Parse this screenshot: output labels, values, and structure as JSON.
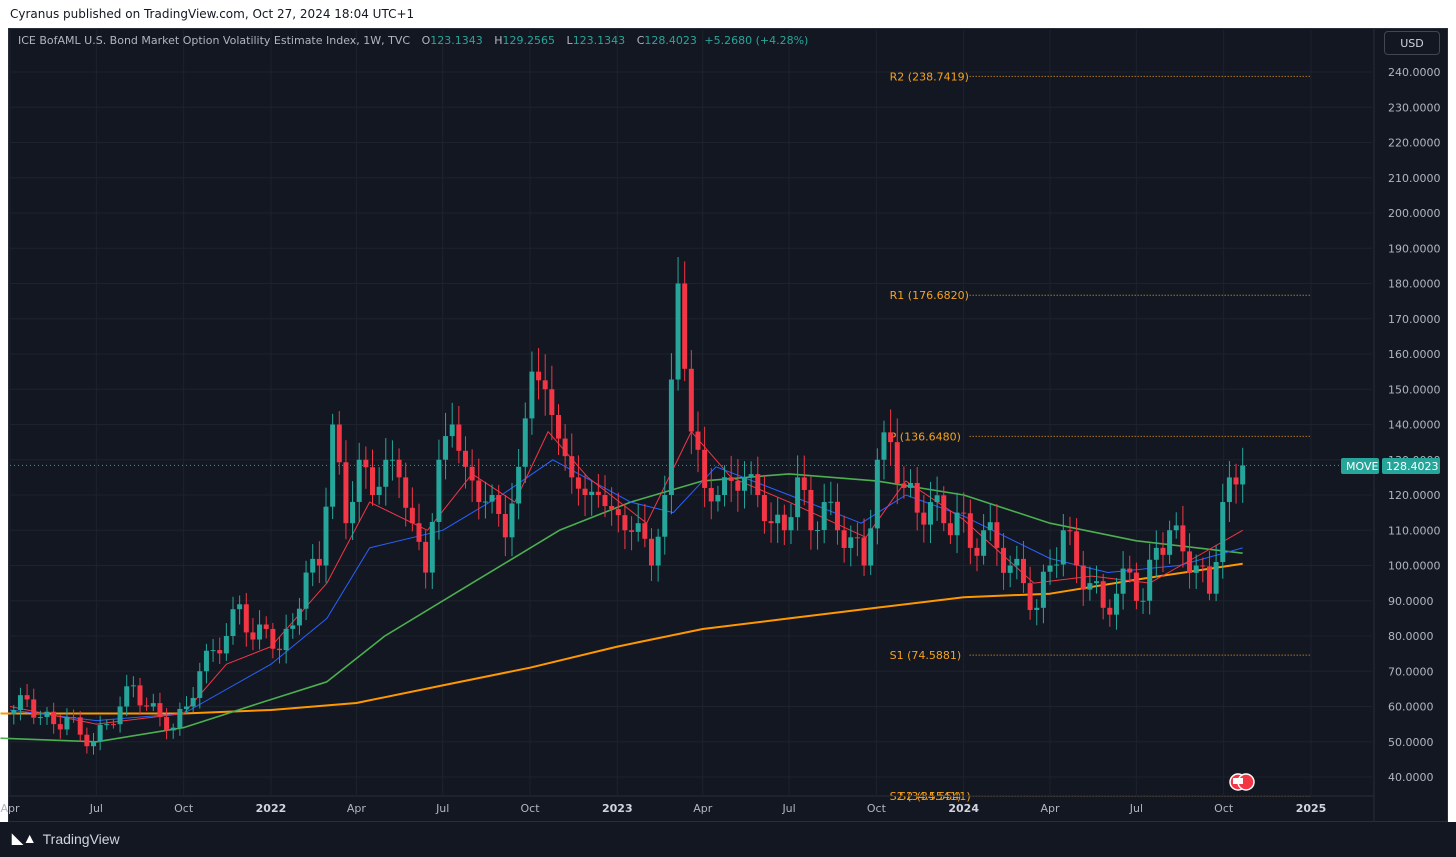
{
  "header": {
    "published_text": "Cyranus published on TradingView.com, Oct 27, 2024 18:04 UTC+1"
  },
  "legend": {
    "title": "ICE BofAML U.S. Bond Market Option Volatility Estimate Index, 1W, TVC",
    "o_label": "O",
    "o_value": "123.1343",
    "h_label": "H",
    "h_value": "129.2565",
    "l_label": "L",
    "l_value": "123.1343",
    "c_label": "C",
    "c_value": "128.4023",
    "change": "+5.2680 (+4.28%)"
  },
  "currency": "USD",
  "footer": {
    "brand": "TradingView"
  },
  "colors": {
    "up": "#26a69a",
    "down": "#f23645",
    "ema_fast": "#f23645",
    "ema_mid": "#2962ff",
    "ema_slow": "#4caf50",
    "sma_long": "#ff9800",
    "pivot": "#f7a21b",
    "background": "#131722"
  },
  "chart_data": {
    "type": "candlestick",
    "symbol": "MOVE",
    "last_price": "128.4023",
    "ylim": [
      35,
      245
    ],
    "yticks": [
      "240.0000",
      "230.0000",
      "220.0000",
      "210.0000",
      "200.0000",
      "190.0000",
      "180.0000",
      "170.0000",
      "160.0000",
      "150.0000",
      "140.0000",
      "130.0000",
      "120.0000",
      "110.0000",
      "100.0000",
      "90.0000",
      "80.0000",
      "70.0000",
      "60.0000",
      "50.0000",
      "40.0000"
    ],
    "xticks": [
      {
        "label": "Apr",
        "date": "2021-04-01"
      },
      {
        "label": "Jul",
        "date": "2021-07-01"
      },
      {
        "label": "Oct",
        "date": "2021-10-01"
      },
      {
        "label": "2022",
        "date": "2022-01-01",
        "bold": true
      },
      {
        "label": "Apr",
        "date": "2022-04-01"
      },
      {
        "label": "Jul",
        "date": "2022-07-01"
      },
      {
        "label": "Oct",
        "date": "2022-10-01"
      },
      {
        "label": "2023",
        "date": "2023-01-01",
        "bold": true
      },
      {
        "label": "Apr",
        "date": "2023-04-01"
      },
      {
        "label": "Jul",
        "date": "2023-07-01"
      },
      {
        "label": "Oct",
        "date": "2023-10-01"
      },
      {
        "label": "2024",
        "date": "2024-01-01",
        "bold": true
      },
      {
        "label": "Apr",
        "date": "2024-04-01"
      },
      {
        "label": "Jul",
        "date": "2024-07-01"
      },
      {
        "label": "Oct",
        "date": "2024-10-01"
      },
      {
        "label": "2025",
        "date": "2025-01-01",
        "bold": true
      }
    ],
    "pivots": [
      {
        "label": "R2 (238.7419)",
        "value": 238.7419,
        "from": "2023-10-01",
        "to": "2025-01-01"
      },
      {
        "label": "R1 (176.6820)",
        "value": 176.682,
        "from": "2023-10-01",
        "to": "2025-01-01"
      },
      {
        "label": "P (136.6480)",
        "value": 136.648,
        "from": "2023-10-01",
        "to": "2025-01-01"
      },
      {
        "label": "S1 (74.5881)",
        "value": 74.5881,
        "from": "2023-10-01",
        "to": "2025-01-01"
      },
      {
        "label": "S2 (34.5541)",
        "value": 34.5541,
        "from": "2023-10-01",
        "to": "2025-01-01"
      }
    ],
    "closes": [
      {
        "d": "2021-03-22",
        "c": 62
      },
      {
        "d": "2021-04-05",
        "c": 59
      },
      {
        "d": "2021-04-19",
        "c": 62
      },
      {
        "d": "2021-05-03",
        "c": 57
      },
      {
        "d": "2021-05-17",
        "c": 55
      },
      {
        "d": "2021-05-31",
        "c": 57
      },
      {
        "d": "2021-06-14",
        "c": 52
      },
      {
        "d": "2021-06-28",
        "c": 50
      },
      {
        "d": "2021-07-12",
        "c": 55
      },
      {
        "d": "2021-07-26",
        "c": 60
      },
      {
        "d": "2021-08-09",
        "c": 66
      },
      {
        "d": "2021-08-23",
        "c": 60
      },
      {
        "d": "2021-09-06",
        "c": 57
      },
      {
        "d": "2021-09-20",
        "c": 54
      },
      {
        "d": "2021-10-04",
        "c": 60
      },
      {
        "d": "2021-10-18",
        "c": 70
      },
      {
        "d": "2021-11-01",
        "c": 76
      },
      {
        "d": "2021-11-15",
        "c": 80
      },
      {
        "d": "2021-11-29",
        "c": 89
      },
      {
        "d": "2021-12-13",
        "c": 79
      },
      {
        "d": "2021-12-27",
        "c": 82
      },
      {
        "d": "2022-01-10",
        "c": 76
      },
      {
        "d": "2022-01-24",
        "c": 83
      },
      {
        "d": "2022-02-07",
        "c": 98
      },
      {
        "d": "2022-02-21",
        "c": 100
      },
      {
        "d": "2022-03-07",
        "c": 140
      },
      {
        "d": "2022-03-21",
        "c": 112
      },
      {
        "d": "2022-04-04",
        "c": 130
      },
      {
        "d": "2022-04-18",
        "c": 120
      },
      {
        "d": "2022-05-02",
        "c": 130
      },
      {
        "d": "2022-05-16",
        "c": 125
      },
      {
        "d": "2022-05-30",
        "c": 112
      },
      {
        "d": "2022-06-13",
        "c": 98
      },
      {
        "d": "2022-06-27",
        "c": 130
      },
      {
        "d": "2022-07-11",
        "c": 140
      },
      {
        "d": "2022-07-25",
        "c": 128
      },
      {
        "d": "2022-08-08",
        "c": 118
      },
      {
        "d": "2022-08-22",
        "c": 120
      },
      {
        "d": "2022-09-05",
        "c": 108
      },
      {
        "d": "2022-09-19",
        "c": 128
      },
      {
        "d": "2022-10-03",
        "c": 155
      },
      {
        "d": "2022-10-17",
        "c": 150
      },
      {
        "d": "2022-10-31",
        "c": 136
      },
      {
        "d": "2022-11-14",
        "c": 125
      },
      {
        "d": "2022-11-28",
        "c": 120
      },
      {
        "d": "2022-12-12",
        "c": 120
      },
      {
        "d": "2022-12-26",
        "c": 116
      },
      {
        "d": "2023-01-09",
        "c": 110
      },
      {
        "d": "2023-01-23",
        "c": 112
      },
      {
        "d": "2023-02-06",
        "c": 100
      },
      {
        "d": "2023-02-20",
        "c": 120
      },
      {
        "d": "2023-03-06",
        "c": 180
      },
      {
        "d": "2023-03-20",
        "c": 138
      },
      {
        "d": "2023-04-03",
        "c": 122
      },
      {
        "d": "2023-04-17",
        "c": 120
      },
      {
        "d": "2023-05-01",
        "c": 124
      },
      {
        "d": "2023-05-15",
        "c": 125
      },
      {
        "d": "2023-05-29",
        "c": 120
      },
      {
        "d": "2023-06-12",
        "c": 112
      },
      {
        "d": "2023-06-26",
        "c": 110
      },
      {
        "d": "2023-07-10",
        "c": 125
      },
      {
        "d": "2023-07-24",
        "c": 110
      },
      {
        "d": "2023-08-07",
        "c": 118
      },
      {
        "d": "2023-08-21",
        "c": 110
      },
      {
        "d": "2023-09-04",
        "c": 108
      },
      {
        "d": "2023-09-18",
        "c": 100
      },
      {
        "d": "2023-10-02",
        "c": 130
      },
      {
        "d": "2023-10-16",
        "c": 135
      },
      {
        "d": "2023-10-30",
        "c": 122
      },
      {
        "d": "2023-11-13",
        "c": 115
      },
      {
        "d": "2023-11-27",
        "c": 118
      },
      {
        "d": "2023-12-11",
        "c": 112
      },
      {
        "d": "2023-12-25",
        "c": 115
      },
      {
        "d": "2024-01-08",
        "c": 105
      },
      {
        "d": "2024-01-22",
        "c": 110
      },
      {
        "d": "2024-02-05",
        "c": 105
      },
      {
        "d": "2024-02-19",
        "c": 100
      },
      {
        "d": "2024-03-04",
        "c": 95
      },
      {
        "d": "2024-03-18",
        "c": 88
      },
      {
        "d": "2024-04-01",
        "c": 100
      },
      {
        "d": "2024-04-15",
        "c": 110
      },
      {
        "d": "2024-04-29",
        "c": 100
      },
      {
        "d": "2024-05-13",
        "c": 95
      },
      {
        "d": "2024-05-27",
        "c": 88
      },
      {
        "d": "2024-06-10",
        "c": 92
      },
      {
        "d": "2024-06-24",
        "c": 98
      },
      {
        "d": "2024-07-08",
        "c": 90
      },
      {
        "d": "2024-07-22",
        "c": 105
      },
      {
        "d": "2024-08-05",
        "c": 110
      },
      {
        "d": "2024-08-19",
        "c": 104
      },
      {
        "d": "2024-09-02",
        "c": 100
      },
      {
        "d": "2024-09-16",
        "c": 92
      },
      {
        "d": "2024-09-30",
        "c": 118
      },
      {
        "d": "2024-10-14",
        "c": 123
      },
      {
        "d": "2024-10-21",
        "c": 128.4
      }
    ],
    "ema_fast": [
      {
        "d": "2021-04-01",
        "v": 60
      },
      {
        "d": "2021-07-01",
        "v": 55
      },
      {
        "d": "2021-10-01",
        "v": 58
      },
      {
        "d": "2021-11-15",
        "v": 72
      },
      {
        "d": "2022-01-01",
        "v": 77
      },
      {
        "d": "2022-03-01",
        "v": 95
      },
      {
        "d": "2022-04-15",
        "v": 118
      },
      {
        "d": "2022-06-15",
        "v": 110
      },
      {
        "d": "2022-08-01",
        "v": 126
      },
      {
        "d": "2022-09-15",
        "v": 118
      },
      {
        "d": "2022-10-20",
        "v": 138
      },
      {
        "d": "2022-12-01",
        "v": 125
      },
      {
        "d": "2023-02-01",
        "v": 112
      },
      {
        "d": "2023-03-20",
        "v": 138
      },
      {
        "d": "2023-05-01",
        "v": 125
      },
      {
        "d": "2023-07-01",
        "v": 118
      },
      {
        "d": "2023-09-20",
        "v": 108
      },
      {
        "d": "2023-11-01",
        "v": 124
      },
      {
        "d": "2024-01-01",
        "v": 113
      },
      {
        "d": "2024-03-15",
        "v": 95
      },
      {
        "d": "2024-05-15",
        "v": 97
      },
      {
        "d": "2024-07-15",
        "v": 95
      },
      {
        "d": "2024-08-30",
        "v": 102
      },
      {
        "d": "2024-10-21",
        "v": 110
      }
    ],
    "ema_mid": [
      {
        "d": "2021-04-01",
        "v": 59
      },
      {
        "d": "2021-07-01",
        "v": 56
      },
      {
        "d": "2021-10-01",
        "v": 58
      },
      {
        "d": "2022-01-01",
        "v": 72
      },
      {
        "d": "2022-03-01",
        "v": 85
      },
      {
        "d": "2022-04-15",
        "v": 105
      },
      {
        "d": "2022-07-01",
        "v": 110
      },
      {
        "d": "2022-09-01",
        "v": 120
      },
      {
        "d": "2022-10-25",
        "v": 130
      },
      {
        "d": "2023-01-15",
        "v": 118
      },
      {
        "d": "2023-03-01",
        "v": 115
      },
      {
        "d": "2023-04-15",
        "v": 128
      },
      {
        "d": "2023-07-01",
        "v": 120
      },
      {
        "d": "2023-09-15",
        "v": 112
      },
      {
        "d": "2023-11-01",
        "v": 120
      },
      {
        "d": "2024-01-01",
        "v": 114
      },
      {
        "d": "2024-04-01",
        "v": 102
      },
      {
        "d": "2024-06-01",
        "v": 98
      },
      {
        "d": "2024-08-15",
        "v": 100
      },
      {
        "d": "2024-10-21",
        "v": 105
      }
    ],
    "ema_slow": [
      {
        "d": "2021-03-22",
        "v": 51
      },
      {
        "d": "2021-07-01",
        "v": 50
      },
      {
        "d": "2021-10-01",
        "v": 54
      },
      {
        "d": "2022-01-01",
        "v": 62
      },
      {
        "d": "2022-03-01",
        "v": 67
      },
      {
        "d": "2022-05-01",
        "v": 80
      },
      {
        "d": "2022-08-01",
        "v": 95
      },
      {
        "d": "2022-11-01",
        "v": 110
      },
      {
        "d": "2023-01-15",
        "v": 118
      },
      {
        "d": "2023-04-01",
        "v": 124
      },
      {
        "d": "2023-07-01",
        "v": 126
      },
      {
        "d": "2023-10-01",
        "v": 124
      },
      {
        "d": "2024-01-01",
        "v": 120
      },
      {
        "d": "2024-04-01",
        "v": 112
      },
      {
        "d": "2024-07-01",
        "v": 107
      },
      {
        "d": "2024-10-21",
        "v": 103.5
      }
    ],
    "sma_long": [
      {
        "d": "2021-03-22",
        "v": 58
      },
      {
        "d": "2021-10-01",
        "v": 58
      },
      {
        "d": "2022-01-01",
        "v": 59
      },
      {
        "d": "2022-04-01",
        "v": 61
      },
      {
        "d": "2022-07-01",
        "v": 66
      },
      {
        "d": "2022-10-01",
        "v": 71
      },
      {
        "d": "2023-01-01",
        "v": 77
      },
      {
        "d": "2023-04-01",
        "v": 82
      },
      {
        "d": "2023-07-01",
        "v": 85
      },
      {
        "d": "2023-10-01",
        "v": 88
      },
      {
        "d": "2024-01-01",
        "v": 91
      },
      {
        "d": "2024-04-01",
        "v": 92
      },
      {
        "d": "2024-07-01",
        "v": 96
      },
      {
        "d": "2024-10-21",
        "v": 100.5
      }
    ]
  }
}
